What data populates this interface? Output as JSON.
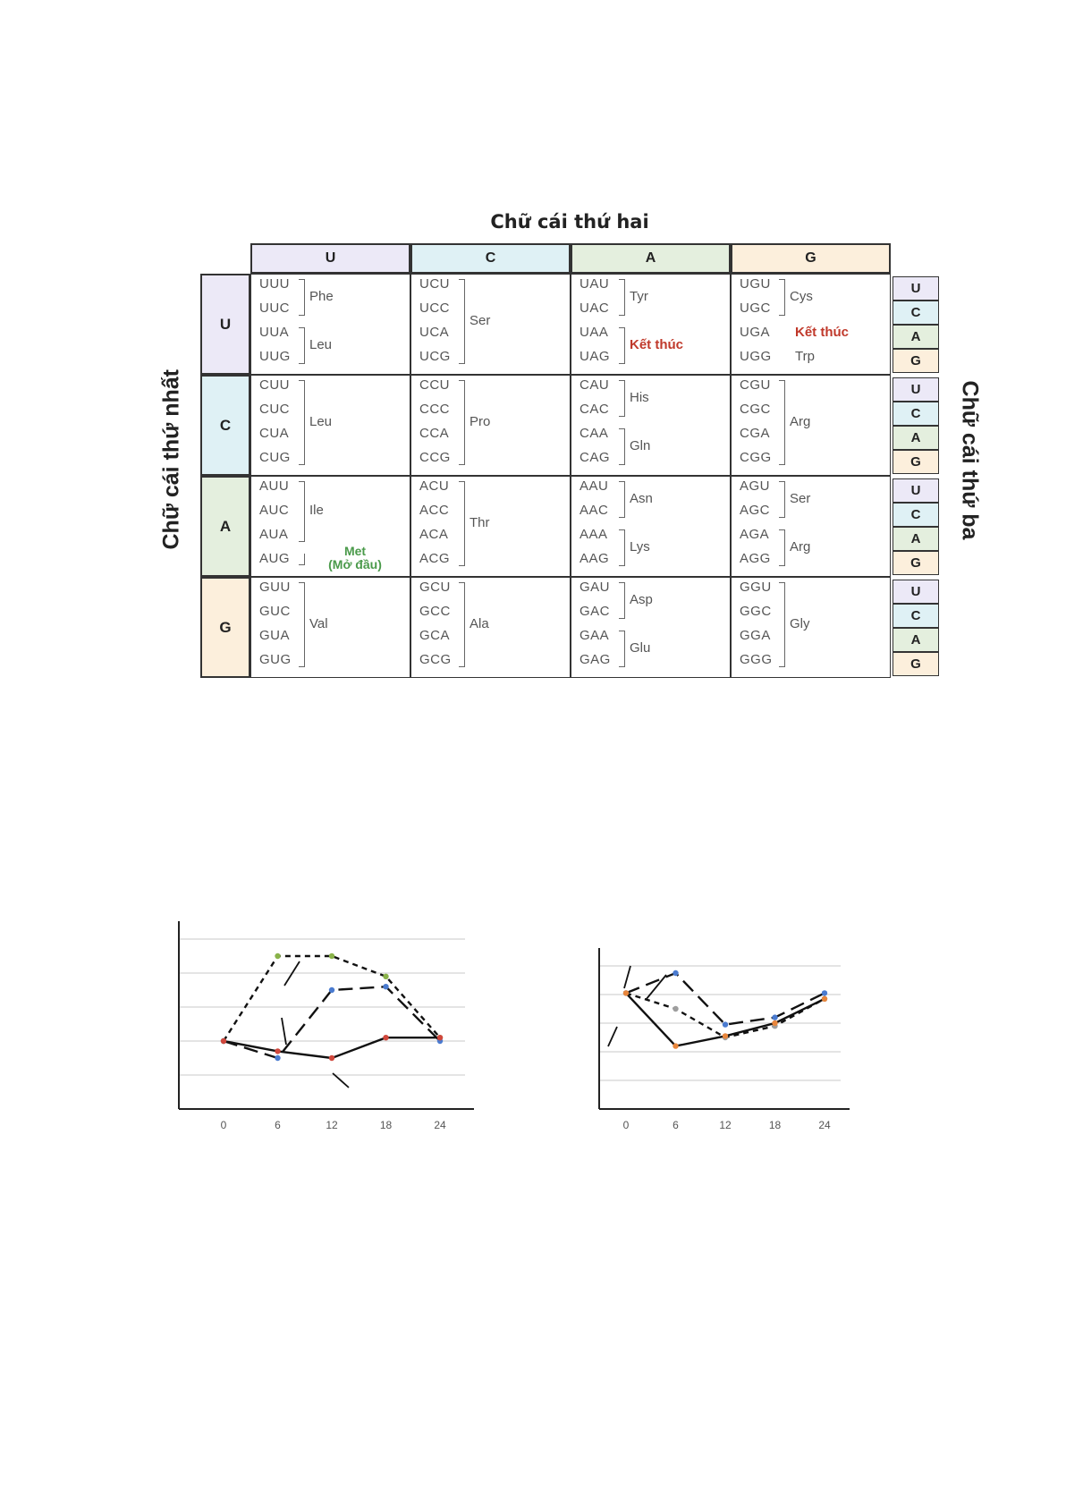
{
  "codon_table": {
    "title": "Chữ cái thứ hai",
    "first_letter_label": "Chữ cái thứ nhất",
    "third_letter_label": "Chữ cái thứ ba",
    "second_letters": [
      "U",
      "C",
      "A",
      "G"
    ],
    "first_letters": [
      "U",
      "C",
      "A",
      "G"
    ],
    "third_letters": [
      "U",
      "C",
      "A",
      "G"
    ],
    "colors": {
      "U": "#ece9f7",
      "C": "#dff1f5",
      "A": "#e4efde",
      "G": "#fcefdc",
      "stop": "#c0392b",
      "start": "#4a9a4a"
    },
    "cells": [
      [
        {
          "codons": [
            "UUU",
            "UUC",
            "UUA",
            "UUG"
          ],
          "groups": [
            {
              "rows": [
                0,
                1
              ],
              "label": "Phe"
            },
            {
              "rows": [
                2,
                3
              ],
              "label": "Leu"
            }
          ]
        },
        {
          "codons": [
            "UCU",
            "UCC",
            "UCA",
            "UCG"
          ],
          "groups": [
            {
              "rows": [
                0,
                3
              ],
              "label": "Ser"
            }
          ]
        },
        {
          "codons": [
            "UAU",
            "UAC",
            "UAA",
            "UAG"
          ],
          "groups": [
            {
              "rows": [
                0,
                1
              ],
              "label": "Tyr"
            },
            {
              "rows": [
                2,
                3
              ],
              "label": "Kết thúc",
              "kind": "stop"
            }
          ]
        },
        {
          "codons": [
            "UGU",
            "UGC",
            "UGA",
            "UGG"
          ],
          "groups": [
            {
              "rows": [
                0,
                1
              ],
              "label": "Cys"
            },
            {
              "rows": [
                2,
                2
              ],
              "label": "Kết thúc",
              "kind": "stop"
            },
            {
              "rows": [
                3,
                3
              ],
              "label": "Trp"
            }
          ]
        }
      ],
      [
        {
          "codons": [
            "CUU",
            "CUC",
            "CUA",
            "CUG"
          ],
          "groups": [
            {
              "rows": [
                0,
                3
              ],
              "label": "Leu"
            }
          ]
        },
        {
          "codons": [
            "CCU",
            "CCC",
            "CCA",
            "CCG"
          ],
          "groups": [
            {
              "rows": [
                0,
                3
              ],
              "label": "Pro"
            }
          ]
        },
        {
          "codons": [
            "CAU",
            "CAC",
            "CAA",
            "CAG"
          ],
          "groups": [
            {
              "rows": [
                0,
                1
              ],
              "label": "His"
            },
            {
              "rows": [
                2,
                3
              ],
              "label": "Gln"
            }
          ]
        },
        {
          "codons": [
            "CGU",
            "CGC",
            "CGA",
            "CGG"
          ],
          "groups": [
            {
              "rows": [
                0,
                3
              ],
              "label": "Arg"
            }
          ]
        }
      ],
      [
        {
          "codons": [
            "AUU",
            "AUC",
            "AUA",
            "AUG"
          ],
          "groups": [
            {
              "rows": [
                0,
                2
              ],
              "label": "Ile"
            },
            {
              "rows": [
                3,
                3
              ],
              "label": "Met",
              "label2": "(Mở đầu)",
              "kind": "start"
            }
          ]
        },
        {
          "codons": [
            "ACU",
            "ACC",
            "ACA",
            "ACG"
          ],
          "groups": [
            {
              "rows": [
                0,
                3
              ],
              "label": "Thr"
            }
          ]
        },
        {
          "codons": [
            "AAU",
            "AAC",
            "AAA",
            "AAG"
          ],
          "groups": [
            {
              "rows": [
                0,
                1
              ],
              "label": "Asn"
            },
            {
              "rows": [
                2,
                3
              ],
              "label": "Lys"
            }
          ]
        },
        {
          "codons": [
            "AGU",
            "AGC",
            "AGA",
            "AGG"
          ],
          "groups": [
            {
              "rows": [
                0,
                1
              ],
              "label": "Ser"
            },
            {
              "rows": [
                2,
                3
              ],
              "label": "Arg"
            }
          ]
        }
      ],
      [
        {
          "codons": [
            "GUU",
            "GUC",
            "GUA",
            "GUG"
          ],
          "groups": [
            {
              "rows": [
                0,
                3
              ],
              "label": "Val"
            }
          ]
        },
        {
          "codons": [
            "GCU",
            "GCC",
            "GCA",
            "GCG"
          ],
          "groups": [
            {
              "rows": [
                0,
                3
              ],
              "label": "Ala"
            }
          ]
        },
        {
          "codons": [
            "GAU",
            "GAC",
            "GAA",
            "GAG"
          ],
          "groups": [
            {
              "rows": [
                0,
                1
              ],
              "label": "Asp"
            },
            {
              "rows": [
                2,
                3
              ],
              "label": "Glu"
            }
          ]
        },
        {
          "codons": [
            "GGU",
            "GGC",
            "GGA",
            "GGG"
          ],
          "groups": [
            {
              "rows": [
                0,
                3
              ],
              "label": "Gly"
            }
          ]
        }
      ]
    ]
  },
  "chart_data": [
    {
      "type": "line",
      "x": [
        0,
        6,
        12,
        18,
        24
      ],
      "xticks": [
        "0",
        "6",
        "12",
        "18",
        "24"
      ],
      "ylim": [
        0,
        5
      ],
      "grid": true,
      "series": [
        {
          "style": "short-dash",
          "color": "#8ab34a",
          "values": [
            2,
            4.5,
            4.5,
            3.9,
            2.1
          ]
        },
        {
          "style": "long-dash",
          "color": "#4a7bd0",
          "values": [
            2,
            1.5,
            3.5,
            3.6,
            2
          ]
        },
        {
          "style": "solid",
          "color": "#d0473c",
          "values": [
            2,
            1.7,
            1.5,
            2.1,
            2.1
          ]
        }
      ]
    },
    {
      "type": "line",
      "x": [
        0,
        6,
        12,
        18,
        24
      ],
      "xticks": [
        "0",
        "6",
        "12",
        "18",
        "24"
      ],
      "ylim": [
        0,
        5
      ],
      "grid": true,
      "series": [
        {
          "style": "long-dash",
          "color": "#4a7bd0",
          "values": [
            4.05,
            4.75,
            2.95,
            3.2,
            4.05
          ]
        },
        {
          "style": "short-dash",
          "color": "#9e9e9e",
          "values": [
            4.05,
            3.5,
            2.5,
            2.9,
            3.85
          ]
        },
        {
          "style": "solid",
          "color": "#e8863c",
          "values": [
            4.05,
            2.2,
            2.55,
            3,
            3.85
          ]
        }
      ]
    }
  ]
}
